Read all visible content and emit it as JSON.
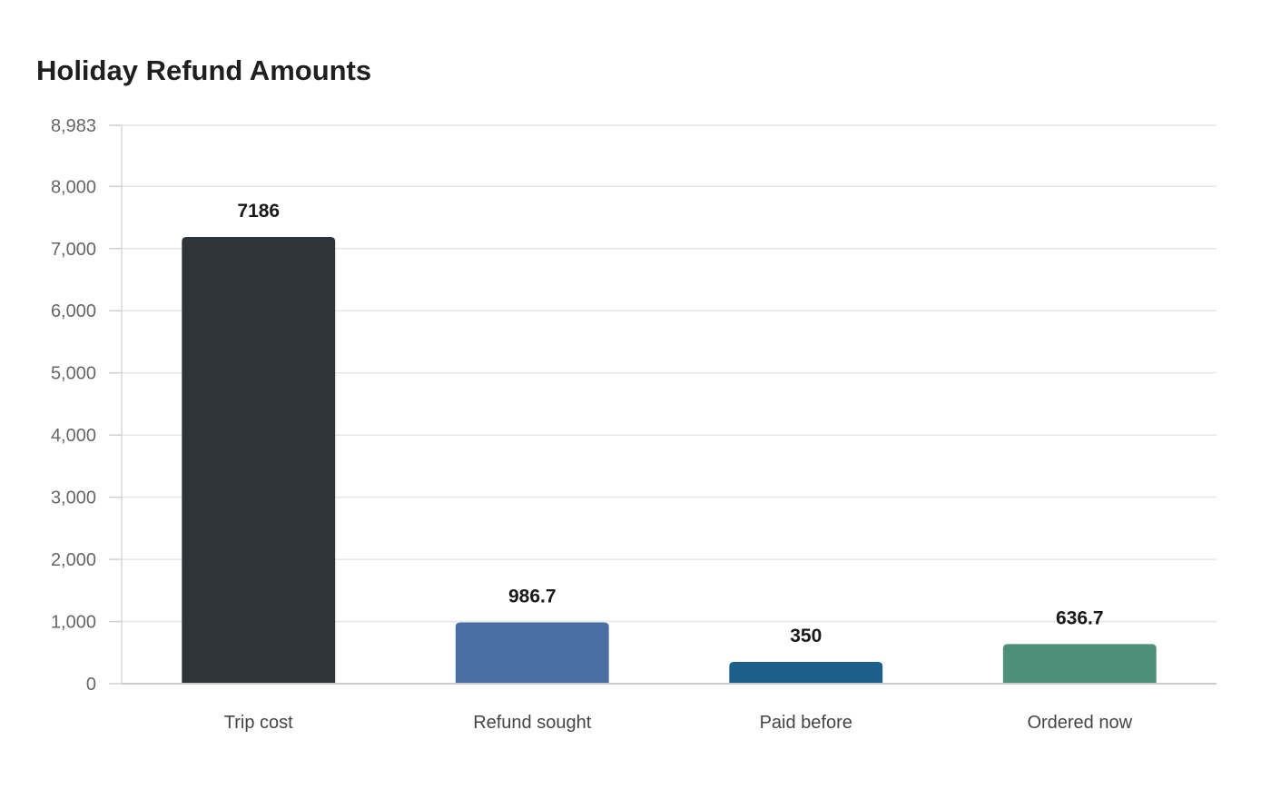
{
  "chart_data": {
    "type": "bar",
    "title": "Holiday Refund Amounts",
    "xlabel": "",
    "ylabel": "",
    "categories": [
      "Trip cost",
      "Refund sought",
      "Paid before",
      "Ordered now"
    ],
    "values": [
      7186,
      986.7,
      350,
      636.7
    ],
    "data_labels": [
      "7186",
      "986.7",
      "350",
      "636.7"
    ],
    "bar_colors": [
      "#2e3538",
      "#4a6fa5",
      "#1b5f8a",
      "#4e8f7a"
    ],
    "ylim": [
      0,
      8983
    ],
    "y_ticks": [
      0,
      1000,
      2000,
      3000,
      4000,
      5000,
      6000,
      7000,
      8000,
      8983
    ],
    "y_tick_labels": [
      "0",
      "1,000",
      "2,000",
      "3,000",
      "4,000",
      "5,000",
      "6,000",
      "7,000",
      "8,000",
      "8,983"
    ],
    "grid": true,
    "legend": "none"
  }
}
